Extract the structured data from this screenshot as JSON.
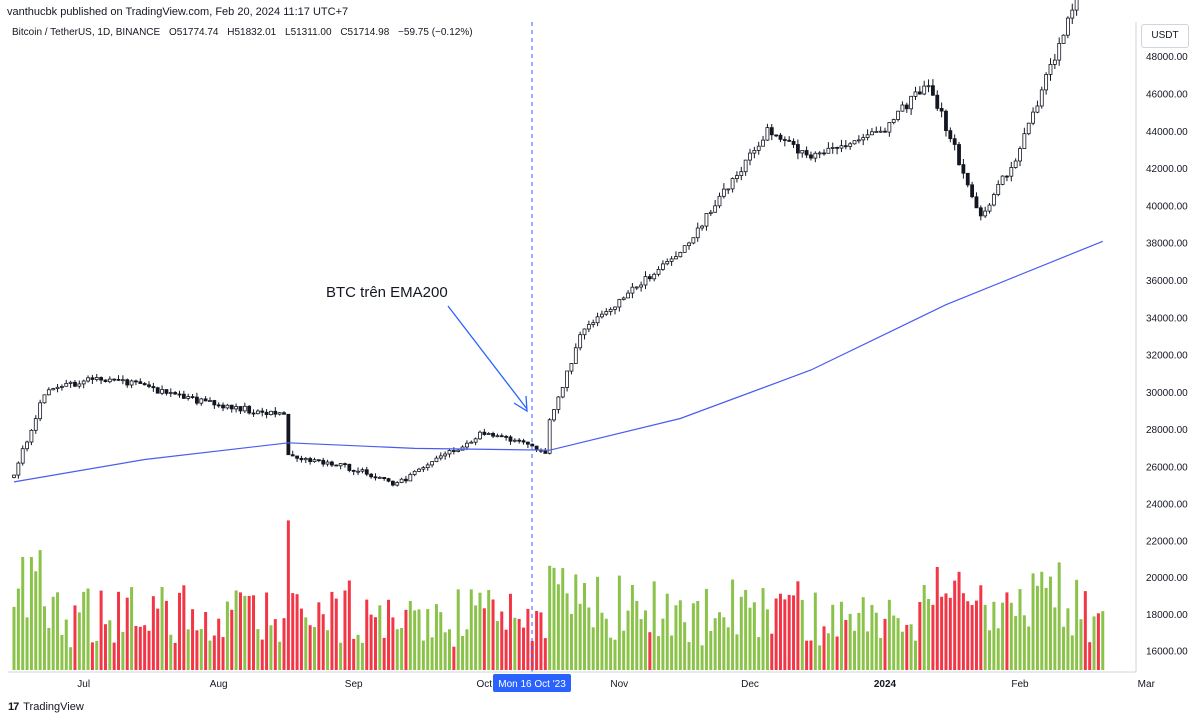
{
  "header": {
    "published": "vanthucbk published on TradingView.com, Feb 20, 2024 11:17 UTC+7",
    "symbol": "Bitcoin / TetherUS, 1D, BINANCE",
    "o_label": "O",
    "o": "51774.74",
    "h_label": "H",
    "h": "51832.01",
    "l_label": "L",
    "l": "51311.00",
    "c_label": "C",
    "c": "51714.98",
    "change": "−59.75 (−0.12%)"
  },
  "currency": "USDT",
  "footer": {
    "logo_glyph": "17",
    "brand": "TradingView"
  },
  "annotation": {
    "text": "BTC  trên EMA200"
  },
  "crosshair_label": "Mon 16 Oct '23",
  "colors": {
    "up": "#8bc34a",
    "down": "#f23645",
    "candle": "#131722",
    "ema": "#4a5cf0",
    "crosshair": "#2962ff",
    "arrow": "#2962ff"
  },
  "chart_data": {
    "type": "candlestick",
    "symbol": "BTCUSDT",
    "interval": "1D",
    "x_ticks": [
      "Jul",
      "Aug",
      "Sep",
      "Oct",
      "Nov",
      "Dec",
      "2024",
      "Feb",
      "Mar"
    ],
    "y_ticks": [
      "26000.00",
      "28000.00",
      "30000.00",
      "32000.00",
      "34000.00",
      "36000.00",
      "38000.00",
      "40000.00",
      "42000.00",
      "44000.00",
      "46000.00",
      "48000.00"
    ],
    "volume_axis_ticks": [
      "16000.00",
      "18000.00",
      "20000.00",
      "22000.00",
      "24000.00"
    ],
    "series": [
      {
        "name": "EMA200 (approx.)",
        "points": [
          [
            "2023-06-15",
            25200
          ],
          [
            "2023-07-15",
            26400
          ],
          [
            "2023-08-17",
            27300
          ],
          [
            "2023-09-15",
            27000
          ],
          [
            "2023-10-16",
            26900
          ],
          [
            "2023-11-15",
            28600
          ],
          [
            "2023-12-15",
            31200
          ],
          [
            "2024-01-15",
            34700
          ],
          [
            "2024-02-20",
            38100
          ]
        ]
      }
    ],
    "key_closes": [
      [
        "2023-06-15",
        25600
      ],
      [
        "2023-06-22",
        30000
      ],
      [
        "2023-07-05",
        30800
      ],
      [
        "2023-07-15",
        30300
      ],
      [
        "2023-08-01",
        29300
      ],
      [
        "2023-08-16",
        28800
      ],
      [
        "2023-08-17",
        26600
      ],
      [
        "2023-09-01",
        25900
      ],
      [
        "2023-09-11",
        25100
      ],
      [
        "2023-10-01",
        27900
      ],
      [
        "2023-10-15",
        26800
      ],
      [
        "2023-10-16",
        28500
      ],
      [
        "2023-10-23",
        33000
      ],
      [
        "2023-11-01",
        35000
      ],
      [
        "2023-11-15",
        37500
      ],
      [
        "2023-12-05",
        44000
      ],
      [
        "2023-12-15",
        42500
      ],
      [
        "2024-01-01",
        44200
      ],
      [
        "2024-01-11",
        46600
      ],
      [
        "2024-01-23",
        39500
      ],
      [
        "2024-02-01",
        43000
      ],
      [
        "2024-02-15",
        51800
      ],
      [
        "2024-02-20",
        51714.98
      ]
    ]
  }
}
